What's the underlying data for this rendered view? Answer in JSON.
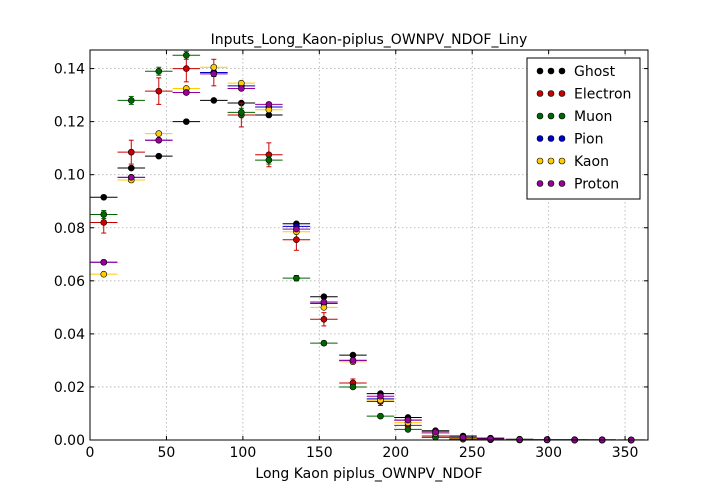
{
  "chart_data": {
    "type": "scatter",
    "title": "Inputs_Long_Kaon-piplus_OWNPV_NDOF_Liny",
    "xlabel": "Long Kaon piplus_OWNPV_NDOF",
    "ylabel": "",
    "xlim": [
      0,
      365
    ],
    "ylim": [
      0,
      0.147
    ],
    "xticks": [
      0,
      50,
      100,
      150,
      200,
      250,
      300,
      350
    ],
    "yticks": [
      0.0,
      0.02,
      0.04,
      0.06,
      0.08,
      0.1,
      0.12,
      0.14
    ],
    "xtick_labels": [
      "0",
      "50",
      "100",
      "150",
      "200",
      "250",
      "300",
      "350"
    ],
    "ytick_labels": [
      "0.00",
      "0.02",
      "0.04",
      "0.06",
      "0.08",
      "0.10",
      "0.12",
      "0.14"
    ],
    "grid": true,
    "legend_position": "top-right",
    "x": [
      9,
      27,
      45,
      63,
      81,
      99,
      117,
      135,
      153,
      172,
      190,
      208,
      226,
      244,
      262,
      281,
      299,
      317,
      335,
      354
    ],
    "bin_half_width": 9,
    "series": [
      {
        "name": "Ghost",
        "color": "#000000",
        "values": [
          0.0915,
          0.1025,
          0.107,
          0.12,
          0.128,
          0.127,
          0.1225,
          0.0815,
          0.054,
          0.032,
          0.0175,
          0.0085,
          0.0035,
          0.0015,
          0.0007,
          0.0003,
          0.0002,
          0.0001,
          0.0001,
          5e-05
        ],
        "errors": [
          0.0005,
          0.0005,
          0.0005,
          0.0005,
          0.0005,
          0.0005,
          0.0005,
          0.0005,
          0.0005,
          0.0005,
          0.0004,
          0.0003,
          0.0002,
          0.0001,
          0.0001,
          0.0001,
          0.0001,
          0.0001,
          0.0001,
          0.0001
        ]
      },
      {
        "name": "Electron",
        "color": "#cc0000",
        "values": [
          0.082,
          0.1085,
          0.1315,
          0.14,
          0.1385,
          0.1225,
          0.1075,
          0.0755,
          0.0455,
          0.0215,
          0.0145,
          0.0055,
          0.0015,
          0.0005,
          0.0002,
          0.0001,
          0.0001,
          0.0001,
          0.0,
          0.0
        ],
        "errors": [
          0.004,
          0.0045,
          0.005,
          0.005,
          0.005,
          0.0045,
          0.0045,
          0.004,
          0.0025,
          0.0015,
          0.0015,
          0.0008,
          0.0004,
          0.0002,
          0.0001,
          0.0001,
          0.0001,
          0.0001,
          0.0,
          0.0
        ]
      },
      {
        "name": "Muon",
        "color": "#006600",
        "values": [
          0.085,
          0.128,
          0.139,
          0.145,
          0.1385,
          0.1235,
          0.1055,
          0.061,
          0.0365,
          0.02,
          0.009,
          0.004,
          0.001,
          0.0003,
          0.0001,
          0.0,
          0.0,
          0.0,
          0.0,
          0.0
        ],
        "errors": [
          0.0015,
          0.0015,
          0.0015,
          0.0015,
          0.0015,
          0.0015,
          0.0015,
          0.001,
          0.0008,
          0.0006,
          0.0004,
          0.0003,
          0.0002,
          0.0001,
          0.0001,
          0.0,
          0.0,
          0.0,
          0.0,
          0.0
        ]
      },
      {
        "name": "Pion",
        "color": "#0000cc",
        "values": [
          0.067,
          0.099,
          0.113,
          0.131,
          0.1385,
          0.1335,
          0.1255,
          0.0805,
          0.0515,
          0.03,
          0.0155,
          0.0075,
          0.0025,
          0.001,
          0.0004,
          0.0002,
          0.0001,
          0.0,
          0.0,
          0.0
        ],
        "errors": [
          0.0006,
          0.0006,
          0.0006,
          0.0006,
          0.0006,
          0.0006,
          0.0006,
          0.0005,
          0.0005,
          0.0004,
          0.0003,
          0.0002,
          0.0001,
          0.0001,
          0.0001,
          0.0001,
          0.0,
          0.0,
          0.0,
          0.0
        ]
      },
      {
        "name": "Kaon",
        "color": "#ffcc00",
        "values": [
          0.0625,
          0.098,
          0.1155,
          0.1325,
          0.1405,
          0.1345,
          0.1245,
          0.0785,
          0.05,
          0.0295,
          0.015,
          0.0065,
          0.0025,
          0.0008,
          0.0003,
          0.0001,
          0.0001,
          0.0,
          0.0,
          0.0
        ],
        "errors": [
          0.0006,
          0.0006,
          0.0006,
          0.0006,
          0.0006,
          0.0006,
          0.0006,
          0.0005,
          0.0005,
          0.0004,
          0.0003,
          0.0002,
          0.0001,
          0.0001,
          0.0001,
          0.0001,
          0.0,
          0.0,
          0.0,
          0.0
        ]
      },
      {
        "name": "Proton",
        "color": "#990099",
        "values": [
          0.067,
          0.099,
          0.113,
          0.131,
          0.138,
          0.1325,
          0.1265,
          0.0795,
          0.052,
          0.03,
          0.0165,
          0.0075,
          0.003,
          0.001,
          0.0004,
          0.0002,
          0.0001,
          0.0,
          0.0,
          0.0
        ],
        "errors": [
          0.0006,
          0.0006,
          0.0006,
          0.0006,
          0.0006,
          0.0006,
          0.0006,
          0.0005,
          0.0005,
          0.0004,
          0.0003,
          0.0002,
          0.0001,
          0.0001,
          0.0001,
          0.0001,
          0.0,
          0.0,
          0.0,
          0.0
        ]
      }
    ]
  }
}
